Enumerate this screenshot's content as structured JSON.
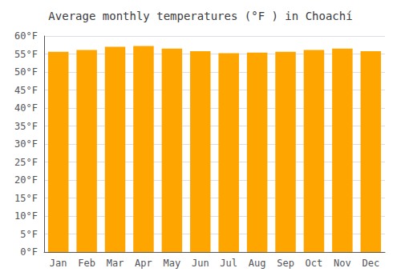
{
  "chart_data": {
    "type": "bar",
    "title": "Average monthly temperatures (°F ) in Choachí",
    "categories": [
      "Jan",
      "Feb",
      "Mar",
      "Apr",
      "May",
      "Jun",
      "Jul",
      "Aug",
      "Sep",
      "Oct",
      "Nov",
      "Dec"
    ],
    "values": [
      55.6,
      56.1,
      57.0,
      57.2,
      56.5,
      55.8,
      55.2,
      55.4,
      55.6,
      56.1,
      56.5,
      55.8
    ],
    "color": "#FFA500",
    "ylim": [
      0,
      60
    ],
    "yticks": [
      {
        "value": 0,
        "label": "0°F"
      },
      {
        "value": 5,
        "label": "5°F"
      },
      {
        "value": 10,
        "label": "10°F"
      },
      {
        "value": 15,
        "label": "15°F"
      },
      {
        "value": 20,
        "label": "20°F"
      },
      {
        "value": 25,
        "label": "25°F"
      },
      {
        "value": 30,
        "label": "30°F"
      },
      {
        "value": 35,
        "label": "35°F"
      },
      {
        "value": 40,
        "label": "40°F"
      },
      {
        "value": 45,
        "label": "45°F"
      },
      {
        "value": 50,
        "label": "50°F"
      },
      {
        "value": 55,
        "label": "55°F"
      },
      {
        "value": 60,
        "label": "60°F"
      }
    ],
    "grid": true
  }
}
